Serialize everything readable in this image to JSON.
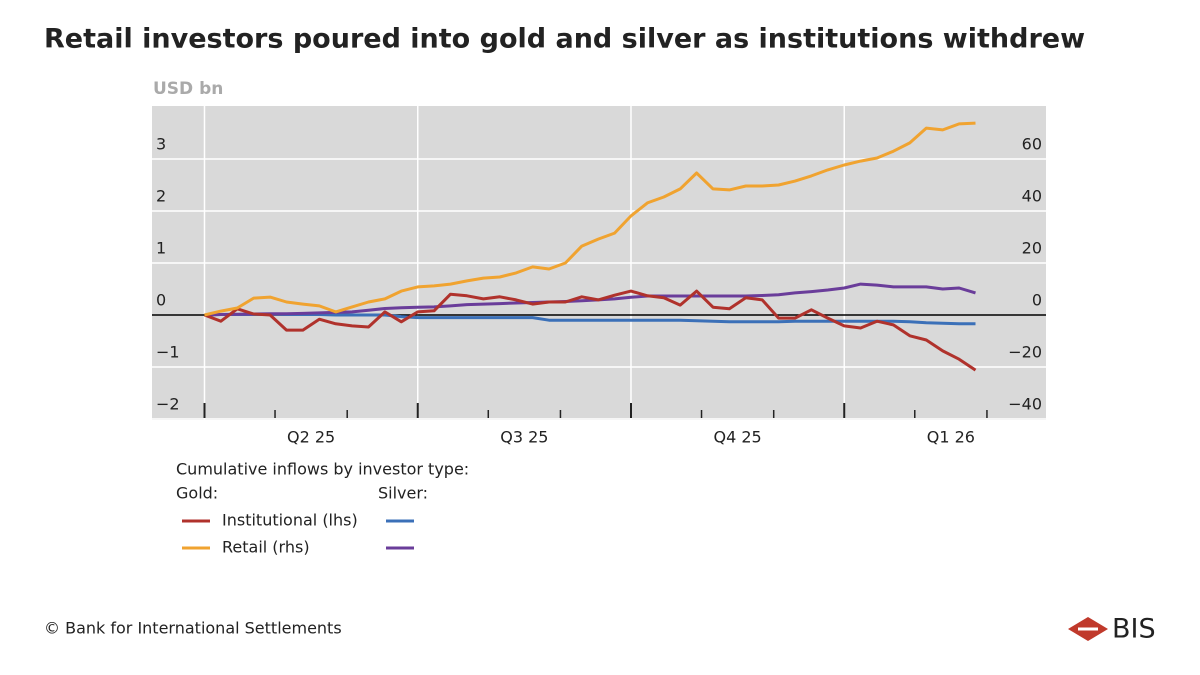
{
  "chart_data": {
    "type": "line",
    "title": "Retail investors poured into gold and silver as institutions withdrew",
    "y_unit": "USD bn",
    "x": [
      0,
      1,
      2,
      3,
      4,
      5,
      6,
      7,
      8,
      9,
      10,
      11,
      12,
      13,
      14,
      15,
      16,
      17,
      18,
      19,
      20,
      21,
      22,
      23,
      24,
      25,
      26,
      27,
      28,
      29,
      30,
      31,
      32,
      33,
      34,
      35,
      36,
      37,
      38,
      39,
      40,
      41,
      42,
      43,
      44,
      45,
      46,
      47
    ],
    "xlim": [
      -3.2,
      51.3
    ],
    "xticks": [
      0,
      13,
      26,
      39
    ],
    "xminor": [
      4.3,
      8.7,
      17.3,
      21.7,
      30.3,
      34.7,
      43.3,
      47.7
    ],
    "x_labels": [
      {
        "value": 6.5,
        "label": "Q2 25"
      },
      {
        "value": 19.5,
        "label": "Q3 25"
      },
      {
        "value": 32.5,
        "label": "Q4 25"
      },
      {
        "value": 45.5,
        "label": "Q1 26"
      }
    ],
    "ylim": [
      -2,
      4
    ],
    "yticks": [
      {
        "value": -2,
        "label": "−2"
      },
      {
        "value": -1,
        "label": "−1"
      },
      0,
      1,
      2,
      3
    ],
    "y2lim": [
      -40,
      80
    ],
    "y2ticks": [
      {
        "value": -40,
        "label": "−40"
      },
      {
        "value": -20,
        "label": "−20"
      },
      0,
      20,
      40,
      60
    ],
    "grid": true,
    "series": [
      {
        "name": "Institutional (lhs)",
        "color": "#b0322c",
        "axis": "y",
        "values": [
          0,
          -0.12,
          0.12,
          0.02,
          0,
          -0.29,
          -0.29,
          -0.08,
          -0.17,
          -0.21,
          -0.23,
          0.06,
          -0.13,
          0.06,
          0.08,
          0.4,
          0.37,
          0.31,
          0.35,
          0.29,
          0.21,
          0.25,
          0.25,
          0.35,
          0.29,
          0.38,
          0.46,
          0.37,
          0.33,
          0.19,
          0.46,
          0.15,
          0.12,
          0.33,
          0.29,
          -0.06,
          -0.06,
          0.1,
          -0.06,
          -0.21,
          -0.25,
          -0.12,
          -0.19,
          -0.4,
          -0.48,
          -0.69,
          -0.85,
          -1.06
        ]
      },
      {
        "name": "Retail (rhs)",
        "color": "#f0a330",
        "axis": "y2",
        "values": [
          0,
          1.5,
          2.7,
          6.5,
          6.9,
          5,
          4.2,
          3.5,
          1.2,
          3.1,
          5,
          6.2,
          9.2,
          10.8,
          11.2,
          11.9,
          13.1,
          14.2,
          14.6,
          16.2,
          18.5,
          17.7,
          20,
          26.5,
          29.2,
          31.5,
          38.1,
          43.1,
          45.4,
          48.5,
          54.6,
          48.5,
          48.1,
          49.6,
          49.6,
          50,
          51.5,
          53.5,
          55.8,
          57.7,
          59.2,
          60.4,
          63,
          66.2,
          71.9,
          71.2,
          73.5,
          73.8
        ]
      },
      {
        "color": "#3b70b8",
        "axis": "y",
        "values": [
          0,
          0.01,
          0.01,
          0.01,
          0.02,
          0.01,
          0.01,
          0.01,
          0,
          0,
          0,
          0,
          -0.03,
          -0.05,
          -0.05,
          -0.05,
          -0.05,
          -0.05,
          -0.05,
          -0.05,
          -0.05,
          -0.1,
          -0.1,
          -0.1,
          -0.1,
          -0.1,
          -0.1,
          -0.1,
          -0.1,
          -0.1,
          -0.11,
          -0.12,
          -0.13,
          -0.13,
          -0.13,
          -0.13,
          -0.12,
          -0.12,
          -0.12,
          -0.12,
          -0.12,
          -0.12,
          -0.12,
          -0.13,
          -0.15,
          -0.16,
          -0.17,
          -0.17
        ]
      },
      {
        "color": "#6a3d9a",
        "axis": "y2",
        "values": [
          0,
          0.2,
          0.3,
          0.4,
          0.5,
          0.5,
          0.6,
          0.8,
          1,
          1.2,
          1.8,
          2.5,
          2.8,
          3,
          3.1,
          3.5,
          4,
          4.2,
          4.4,
          4.6,
          4.8,
          5,
          5.2,
          5.5,
          5.8,
          6.2,
          6.8,
          7.3,
          7.3,
          7.3,
          7.3,
          7.3,
          7.3,
          7.3,
          7.5,
          7.8,
          8.5,
          9,
          9.6,
          10.4,
          11.9,
          11.5,
          10.8,
          10.8,
          10.8,
          10,
          10.4,
          8.5
        ]
      }
    ],
    "legend": {
      "title": "Cumulative inflows by investor type:",
      "groups": [
        "Gold:",
        "Silver:"
      ]
    },
    "source": "© Bank for International Settlements",
    "logo": "BIS"
  }
}
